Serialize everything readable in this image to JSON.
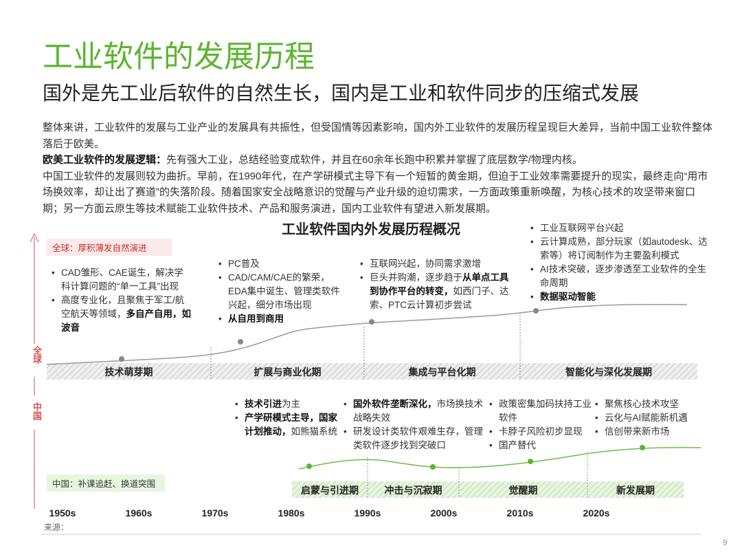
{
  "title": "工业软件的发展历程",
  "subtitle": "国外是先工业后软件的自然生长，国内是工业和软件同步的压缩式发展",
  "intro": [
    [
      {
        "text": "整体来讲，工业软件的发展与工业产业的发展具有共振性，但受国情等因素影响，国内外工业软件的发展历程呈现巨大差异，当前中国工业软件整体落后于欧美。",
        "bold": false
      }
    ],
    [
      {
        "text": "欧美工业软件的发展逻辑：",
        "bold": true
      },
      {
        "text": "先有强大工业，总结经验变成软件，并且在60余年长跑中积累并掌握了底层数学/物理内核。",
        "bold": false
      }
    ],
    [
      {
        "text": "中国工业软件的发展则较为曲折。早前，在1990年代，在产学研模式主导下有一个短暂的黄金期，但迫于工业效率需要提升的现实，最终走向“用市场换效率，却让出了赛道”的失落阶段。随着国家安全战略意识的觉醒与产业升级的迫切需求，一方面政策重新唤醒，为核心技术的攻坚带来窗口期；另一方面云原生等技术赋能工业软件技术、产品和服务演进，国内工业软件有望进入新发展期。",
        "bold": false
      }
    ]
  ],
  "diagram": {
    "title": "工业软件国内外发展历程概况",
    "global": {
      "label": "全球",
      "tag": "全球：厚积薄发自然演进",
      "phases": [
        "技术萌芽期",
        "扩展与商业化期",
        "集成与平台化期",
        "智能化与深化发展期"
      ],
      "notes": [
        [
          [
            {
              "text": "CAD雏形、CAE诞生，解决学科计算问题的“单一工具”出现",
              "bold": false
            }
          ],
          [
            {
              "text": "高度专业化，且聚焦于军工/航空航天等领域，",
              "bold": false
            },
            {
              "text": "多自产自用，如波音",
              "bold": true
            }
          ]
        ],
        [
          [
            {
              "text": "PC普及",
              "bold": false
            }
          ],
          [
            {
              "text": "CAD/CAM/CAE的繁荣，EDA集中诞生、管理类软件兴起，细分市场出现",
              "bold": false
            }
          ],
          [
            {
              "text": "从自用到商用",
              "bold": true
            }
          ]
        ],
        [
          [
            {
              "text": "互联网兴起，协同需求激增",
              "bold": false
            }
          ],
          [
            {
              "text": "巨头并购潮，逐步趋于",
              "bold": false
            },
            {
              "text": "从单点工具到协作平台的转变，",
              "bold": true
            },
            {
              "text": "如西门子、达索、PTC云计算初步尝试",
              "bold": false
            }
          ]
        ],
        [
          [
            {
              "text": "工业互联网平台兴起",
              "bold": false
            }
          ],
          [
            {
              "text": "云计算成熟，部分玩家（如autodesk、达索等）将订阅制作为主要盈利模式",
              "bold": false
            }
          ],
          [
            {
              "text": "AI技术突破，逐步渗透至工业软件的全生命周期",
              "bold": false
            }
          ],
          [
            {
              "text": "数据驱动智能",
              "bold": true
            }
          ]
        ]
      ]
    },
    "china": {
      "label": "中国",
      "tag": "中国：补课追赶、换道突围",
      "phases": [
        "启蒙与引进期",
        "冲击与沉寂期",
        "觉醒期",
        "新发展期"
      ],
      "notes": [
        [
          [
            {
              "text": "技术引进",
              "bold": true
            },
            {
              "text": "为主",
              "bold": false
            }
          ],
          [
            {
              "text": "产学研模式主导，国家计划推动，",
              "bold": true
            },
            {
              "text": "如熊猫系统",
              "bold": false
            }
          ]
        ],
        [
          [
            {
              "text": "国外软件垄断深化，",
              "bold": true
            },
            {
              "text": "市场换技术战略失效",
              "bold": false
            }
          ],
          [
            {
              "text": "研发设计类软件艰难生存，管理类软件逐步找到突破口",
              "bold": false
            }
          ]
        ],
        [
          [
            {
              "text": "政策密集加码扶持工业软件",
              "bold": false
            }
          ],
          [
            {
              "text": "卡脖子风险初步显现",
              "bold": false
            }
          ],
          [
            {
              "text": "国产替代",
              "bold": false
            }
          ]
        ],
        [
          [
            {
              "text": "聚焦核心技术攻坚",
              "bold": false
            }
          ],
          [
            {
              "text": "云化与AI赋能新机遇",
              "bold": false
            }
          ],
          [
            {
              "text": "信创带来新市场",
              "bold": false
            }
          ]
        ]
      ]
    },
    "decades": [
      "1950s",
      "1960s",
      "1970s",
      "1980s",
      "1990s",
      "2000s",
      "2010s",
      "2020s"
    ]
  },
  "source": "来源：",
  "page": "9"
}
